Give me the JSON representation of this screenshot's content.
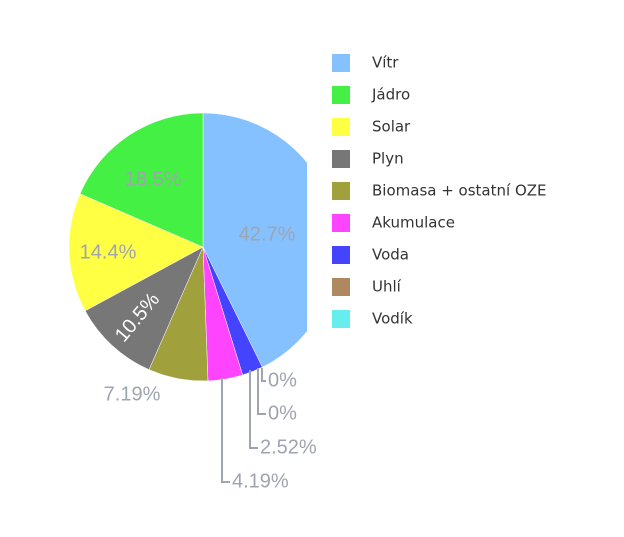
{
  "chart_data": {
    "type": "pie",
    "categories": [
      "Vítr",
      "Jádro",
      "Solar",
      "Plyn",
      "Biomasa + ostatní OZE",
      "Akumulace",
      "Voda",
      "Uhlí",
      "Vodík"
    ],
    "values": [
      42.7,
      18.5,
      14.4,
      10.5,
      7.19,
      4.19,
      2.52,
      0,
      0
    ],
    "value_labels": [
      "42.7%",
      "18.5%",
      "14.4%",
      "10.5%",
      "7.19%",
      "4.19%",
      "2.52%",
      "0%",
      "0%"
    ],
    "colors": [
      "#85c1ff",
      "#44f044",
      "#ffff44",
      "#777777",
      "#a0a03c",
      "#ff44ff",
      "#4444ff",
      "#b08860",
      "#66eeee"
    ]
  }
}
